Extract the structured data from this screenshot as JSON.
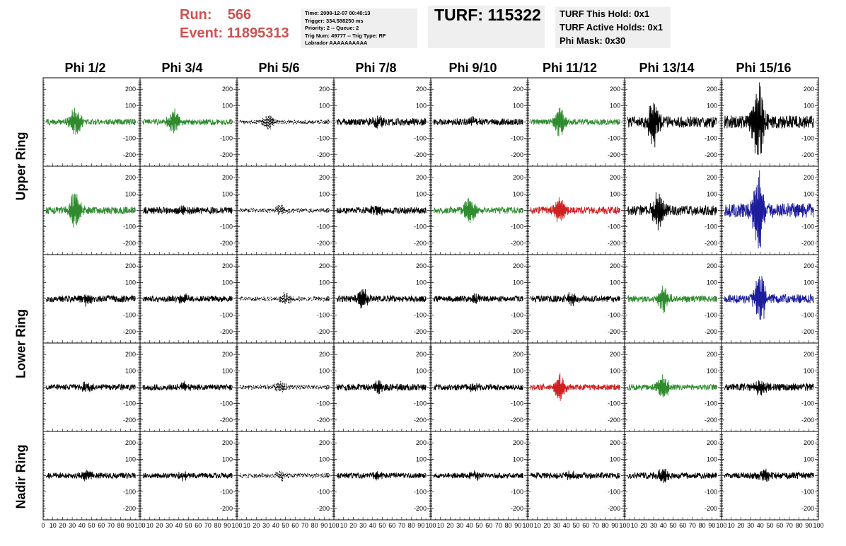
{
  "header": {
    "run_label": "Run:",
    "run_value": "566",
    "event_label": "Event:",
    "event_value": "11895313",
    "info_lines": [
      "Time: 2008-12-07 00:40:13",
      "Trigger: 334.588250 ms",
      "Priority: 2 -- Queue: 2",
      "Trig Num: 49777 -- Trig Type: RF",
      "Labrador AAAAAAAAAA"
    ],
    "turf": "TURF: 115322",
    "holds_lines": [
      "TURF This Hold: 0x1",
      "TURF Active Holds: 0x1",
      "Phi Mask: 0x30"
    ]
  },
  "colors": {
    "black": "#000000",
    "green": "#2e8b2e",
    "red": "#d02020",
    "blue": "#1c1c9c",
    "title_red": "#d05050"
  },
  "chart_data": {
    "type": "line",
    "columns": [
      "Phi 1/2",
      "Phi 3/4",
      "Phi 5/6",
      "Phi 7/8",
      "Phi 9/10",
      "Phi 11/12",
      "Phi 13/14",
      "Phi 15/16"
    ],
    "rows": [
      "Upper Ring",
      "Upper Ring",
      "Lower Ring",
      "Lower Ring",
      "Nadir Ring"
    ],
    "ring_labels": [
      "Upper Ring",
      "Lower Ring",
      "Nadir Ring"
    ],
    "xlim": [
      0,
      100
    ],
    "ylim": [
      -270,
      270
    ],
    "x_ticks": [
      0,
      10,
      20,
      30,
      40,
      50,
      60,
      70,
      80,
      90,
      100
    ],
    "y_ticks": [
      -200,
      -100,
      0,
      100,
      200
    ],
    "panels": [
      [
        {
          "color": "green",
          "amp": 18,
          "peak": 90,
          "center": 33,
          "style": "solid"
        },
        {
          "color": "green",
          "amp": 18,
          "peak": 80,
          "center": 35,
          "style": "solid"
        },
        {
          "color": "black",
          "amp": 12,
          "peak": 50,
          "center": 32,
          "style": "dashed"
        },
        {
          "color": "black",
          "amp": 22,
          "peak": 40,
          "center": 45,
          "style": "solid"
        },
        {
          "color": "black",
          "amp": 20,
          "peak": 30,
          "center": 45,
          "style": "solid"
        },
        {
          "color": "green",
          "amp": 18,
          "peak": 90,
          "center": 33,
          "style": "solid"
        },
        {
          "color": "black",
          "amp": 35,
          "peak": 150,
          "center": 30,
          "style": "solid"
        },
        {
          "color": "black",
          "amp": 40,
          "peak": 250,
          "center": 38,
          "style": "solid"
        }
      ],
      [
        {
          "color": "green",
          "amp": 22,
          "peak": 120,
          "center": 33,
          "style": "solid"
        },
        {
          "color": "black",
          "amp": 20,
          "peak": 30,
          "center": 45,
          "style": "solid"
        },
        {
          "color": "black",
          "amp": 14,
          "peak": 40,
          "center": 45,
          "style": "dashed"
        },
        {
          "color": "black",
          "amp": 20,
          "peak": 40,
          "center": 45,
          "style": "solid"
        },
        {
          "color": "green",
          "amp": 20,
          "peak": 80,
          "center": 40,
          "style": "solid"
        },
        {
          "color": "red",
          "amp": 22,
          "peak": 90,
          "center": 33,
          "style": "solid"
        },
        {
          "color": "black",
          "amp": 30,
          "peak": 130,
          "center": 35,
          "style": "solid"
        },
        {
          "color": "blue",
          "amp": 45,
          "peak": 250,
          "center": 38,
          "style": "solid"
        }
      ],
      [
        {
          "color": "black",
          "amp": 20,
          "peak": 40,
          "center": 45,
          "style": "solid"
        },
        {
          "color": "black",
          "amp": 18,
          "peak": 30,
          "center": 45,
          "style": "solid"
        },
        {
          "color": "black",
          "amp": 14,
          "peak": 40,
          "center": 50,
          "style": "dashed"
        },
        {
          "color": "black",
          "amp": 20,
          "peak": 70,
          "center": 30,
          "style": "solid"
        },
        {
          "color": "black",
          "amp": 18,
          "peak": 30,
          "center": 45,
          "style": "solid"
        },
        {
          "color": "black",
          "amp": 20,
          "peak": 40,
          "center": 45,
          "style": "solid"
        },
        {
          "color": "green",
          "amp": 20,
          "peak": 80,
          "center": 40,
          "style": "solid"
        },
        {
          "color": "blue",
          "amp": 28,
          "peak": 160,
          "center": 40,
          "style": "solid"
        }
      ],
      [
        {
          "color": "black",
          "amp": 18,
          "peak": 30,
          "center": 45,
          "style": "solid"
        },
        {
          "color": "black",
          "amp": 18,
          "peak": 30,
          "center": 45,
          "style": "solid"
        },
        {
          "color": "black",
          "amp": 14,
          "peak": 35,
          "center": 45,
          "style": "dashed"
        },
        {
          "color": "black",
          "amp": 20,
          "peak": 40,
          "center": 45,
          "style": "solid"
        },
        {
          "color": "black",
          "amp": 18,
          "peak": 30,
          "center": 45,
          "style": "solid"
        },
        {
          "color": "red",
          "amp": 18,
          "peak": 90,
          "center": 33,
          "style": "solid"
        },
        {
          "color": "green",
          "amp": 18,
          "peak": 80,
          "center": 40,
          "style": "solid"
        },
        {
          "color": "black",
          "amp": 22,
          "peak": 50,
          "center": 40,
          "style": "solid"
        }
      ],
      [
        {
          "color": "black",
          "amp": 18,
          "peak": 30,
          "center": 45,
          "style": "solid"
        },
        {
          "color": "black",
          "amp": 16,
          "peak": 30,
          "center": 45,
          "style": "solid"
        },
        {
          "color": "black",
          "amp": 14,
          "peak": 30,
          "center": 45,
          "style": "dashed"
        },
        {
          "color": "black",
          "amp": 16,
          "peak": 30,
          "center": 45,
          "style": "solid"
        },
        {
          "color": "black",
          "amp": 16,
          "peak": 30,
          "center": 45,
          "style": "solid"
        },
        {
          "color": "black",
          "amp": 18,
          "peak": 30,
          "center": 45,
          "style": "solid"
        },
        {
          "color": "black",
          "amp": 20,
          "peak": 50,
          "center": 40,
          "style": "solid"
        },
        {
          "color": "black",
          "amp": 20,
          "peak": 40,
          "center": 45,
          "style": "solid"
        }
      ]
    ]
  }
}
